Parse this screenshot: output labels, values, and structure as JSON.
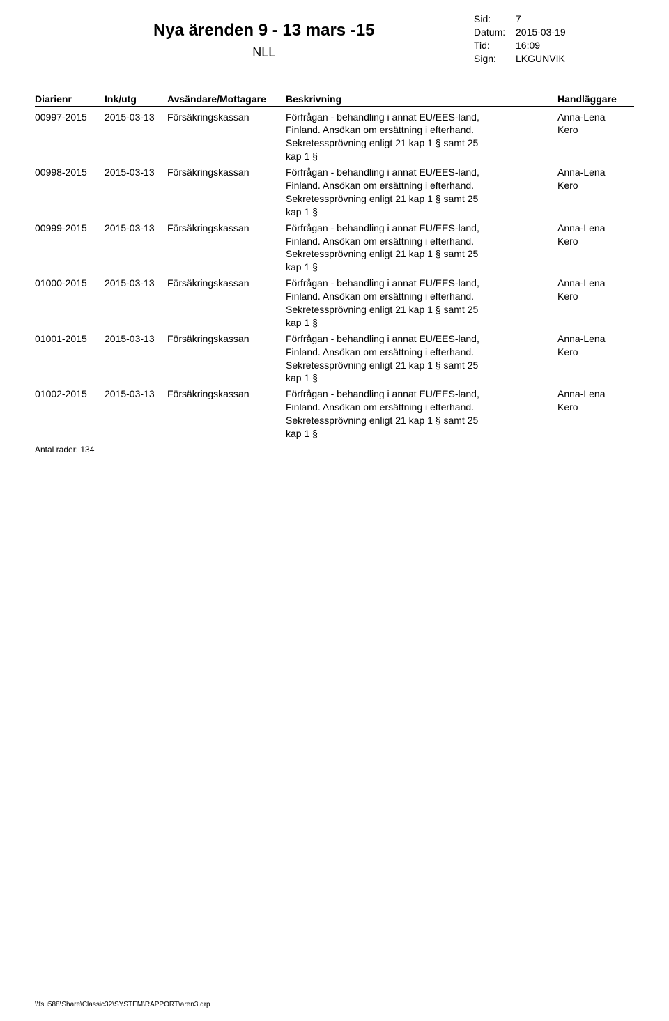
{
  "header": {
    "title": "Nya ärenden 9 - 13 mars -15",
    "subtitle": "NLL",
    "meta": {
      "sid_label": "Sid:",
      "sid_value": "7",
      "datum_label": "Datum:",
      "datum_value": "2015-03-19",
      "tid_label": "Tid:",
      "tid_value": "16:09",
      "sign_label": "Sign:",
      "sign_value": "LKGUNVIK"
    }
  },
  "columns": {
    "diarienr": "Diarienr",
    "inkutg": "Ink/utg",
    "sender": "Avsändare/Mottagare",
    "desc": "Beskrivning",
    "handler": "Handläggare"
  },
  "rows": [
    {
      "diarienr": "00997-2015",
      "inkutg": "2015-03-13",
      "sender": "Försäkringskassan",
      "desc_l1": "Förfrågan - behandling i annat EU/EES-land,",
      "desc_l2": "Finland. Ansökan om ersättning i efterhand.",
      "desc_l3": "Sekretessprövning enligt 21 kap 1 § samt 25",
      "desc_l4": "kap 1 §",
      "handler_l1": "Anna-Lena",
      "handler_l2": "Kero"
    },
    {
      "diarienr": "00998-2015",
      "inkutg": "2015-03-13",
      "sender": "Försäkringskassan",
      "desc_l1": "Förfrågan - behandling i annat EU/EES-land,",
      "desc_l2": "Finland. Ansökan om ersättning i efterhand.",
      "desc_l3": "Sekretessprövning enligt 21 kap 1 § samt 25",
      "desc_l4": "kap 1 §",
      "handler_l1": "Anna-Lena",
      "handler_l2": "Kero"
    },
    {
      "diarienr": "00999-2015",
      "inkutg": "2015-03-13",
      "sender": "Försäkringskassan",
      "desc_l1": "Förfrågan - behandling i annat EU/EES-land,",
      "desc_l2": "Finland. Ansökan om ersättning i efterhand.",
      "desc_l3": "Sekretessprövning enligt 21 kap 1 § samt 25",
      "desc_l4": "kap 1 §",
      "handler_l1": "Anna-Lena",
      "handler_l2": "Kero"
    },
    {
      "diarienr": "01000-2015",
      "inkutg": "2015-03-13",
      "sender": "Försäkringskassan",
      "desc_l1": "Förfrågan - behandling i annat EU/EES-land,",
      "desc_l2": "Finland. Ansökan om ersättning i efterhand.",
      "desc_l3": "Sekretessprövning enligt 21 kap 1 § samt 25",
      "desc_l4": "kap 1 §",
      "handler_l1": "Anna-Lena",
      "handler_l2": "Kero"
    },
    {
      "diarienr": "01001-2015",
      "inkutg": "2015-03-13",
      "sender": "Försäkringskassan",
      "desc_l1": "Förfrågan - behandling i annat EU/EES-land,",
      "desc_l2": "Finland. Ansökan om ersättning i efterhand.",
      "desc_l3": "Sekretessprövning enligt 21 kap 1 § samt 25",
      "desc_l4": "kap 1 §",
      "handler_l1": "Anna-Lena",
      "handler_l2": "Kero"
    },
    {
      "diarienr": "01002-2015",
      "inkutg": "2015-03-13",
      "sender": "Försäkringskassan",
      "desc_l1": "Förfrågan - behandling i annat EU/EES-land,",
      "desc_l2": "Finland. Ansökan om ersättning i efterhand.",
      "desc_l3": "Sekretessprövning enligt 21 kap 1 § samt 25",
      "desc_l4": "kap 1 §",
      "handler_l1": "Anna-Lena",
      "handler_l2": "Kero"
    }
  ],
  "total": "Antal rader: 134",
  "footer": "\\\\fsu588\\Share\\Classic32\\SYSTEM\\RAPPORT\\aren3.qrp"
}
